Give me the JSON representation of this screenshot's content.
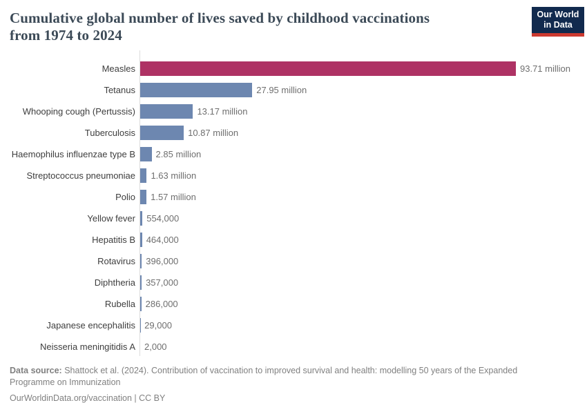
{
  "title": {
    "line1": "Cumulative global number of lives saved by childhood vaccinations",
    "line2": "from 1974 to 2024"
  },
  "logo": {
    "line1": "Our World",
    "line2": "in Data",
    "background_color": "#112a4e",
    "accent_color": "#cc3a30"
  },
  "chart_data": {
    "type": "bar",
    "orientation": "horizontal",
    "title": "Cumulative global number of lives saved by childhood vaccinations from 1974 to 2024",
    "categories": [
      "Measles",
      "Tetanus",
      "Whooping cough (Pertussis)",
      "Tuberculosis",
      "Haemophilus influenzae type B",
      "Streptococcus pneumoniae",
      "Polio",
      "Yellow fever",
      "Hepatitis B",
      "Rotavirus",
      "Diphtheria",
      "Rubella",
      "Japanese encephalitis",
      "Neisseria meningitidis A"
    ],
    "values": [
      93710000,
      27950000,
      13170000,
      10870000,
      2850000,
      1630000,
      1570000,
      554000,
      464000,
      396000,
      357000,
      286000,
      29000,
      2000
    ],
    "value_labels": [
      "93.71 million",
      "27.95 million",
      "13.17 million",
      "10.87 million",
      "2.85 million",
      "1.63 million",
      "1.57 million",
      "554,000",
      "464,000",
      "396,000",
      "357,000",
      "286,000",
      "29,000",
      "2,000"
    ],
    "xmax": 93710000,
    "highlight_index": 0,
    "highlight_color": "#ae3264",
    "default_color": "#6d87b0",
    "grid": false,
    "legend": false
  },
  "footer": {
    "source_label": "Data source:",
    "source_text": " Shattock et al. (2024). Contribution of vaccination to improved survival and health: modelling 50 years of the Expanded Programme on Immunization",
    "citation": "OurWorldinData.org/vaccination | CC BY"
  }
}
